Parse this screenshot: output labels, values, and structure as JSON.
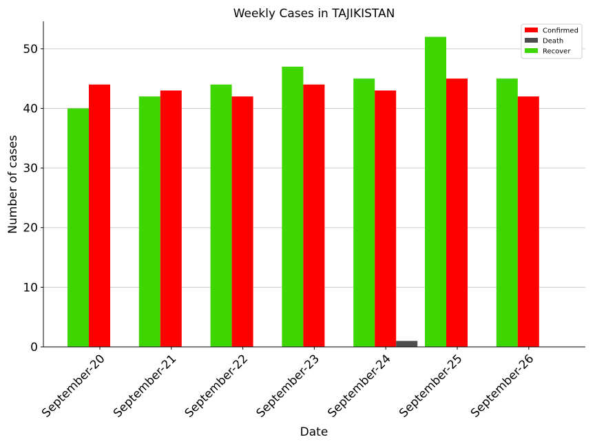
{
  "chart_data": {
    "type": "bar",
    "title": "Weekly Cases in TAJIKISTAN",
    "xlabel": "Date",
    "ylabel": "Number of cases",
    "categories": [
      "September-20",
      "September-21",
      "September-22",
      "September-23",
      "September-24",
      "September-25",
      "September-26"
    ],
    "series": [
      {
        "name": "Recover",
        "color": "#3dd600",
        "values": [
          40,
          42,
          44,
          47,
          45,
          52,
          45
        ]
      },
      {
        "name": "Confirmed",
        "color": "#ff0000",
        "values": [
          44,
          43,
          42,
          44,
          43,
          45,
          42
        ]
      },
      {
        "name": "Death",
        "color": "#4d4d4d",
        "values": [
          0,
          0,
          0,
          0,
          1,
          0,
          0
        ]
      }
    ],
    "legend_order": [
      "Confirmed",
      "Death",
      "Recover"
    ],
    "legend_position": "top-right",
    "ylim": [
      0,
      54.6
    ],
    "yticks": [
      0,
      10,
      20,
      30,
      40,
      50
    ],
    "grid": "horizontal"
  }
}
